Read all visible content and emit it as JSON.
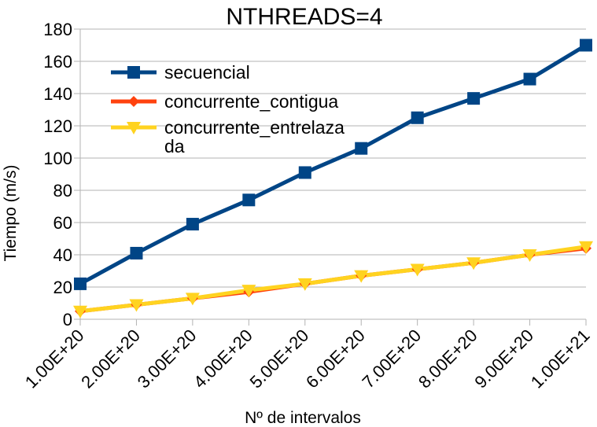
{
  "chart_data": {
    "type": "line",
    "title": "NTHREADS=4",
    "xlabel": "Nº de intervalos",
    "ylabel": "Tiempo (m/s)",
    "categories": [
      "1.00E+20",
      "2.00E+20",
      "3.00E+20",
      "4.00E+20",
      "5.00E+20",
      "6.00E+20",
      "7.00E+20",
      "8.00E+20",
      "9.00E+20",
      "1.00E+21"
    ],
    "ylim": [
      0,
      180
    ],
    "yticks": [
      0,
      20,
      40,
      60,
      80,
      100,
      120,
      140,
      160,
      180
    ],
    "grid": true,
    "legend_position": "top-left",
    "series": [
      {
        "name": "secuencial",
        "color": "#004586",
        "marker": "square",
        "values": [
          22,
          41,
          59,
          74,
          91,
          106,
          125,
          137,
          149,
          170
        ]
      },
      {
        "name": "concurrente_contigua",
        "color": "#ff420e",
        "marker": "diamond",
        "values": [
          5,
          9,
          13,
          17,
          22,
          27,
          31,
          35,
          40,
          44
        ]
      },
      {
        "name": "concurrente_entrelaza da",
        "color": "#ffd320",
        "marker": "triangle-down",
        "values": [
          5,
          9,
          13,
          18,
          22,
          27,
          31,
          35,
          40,
          45
        ]
      }
    ]
  }
}
